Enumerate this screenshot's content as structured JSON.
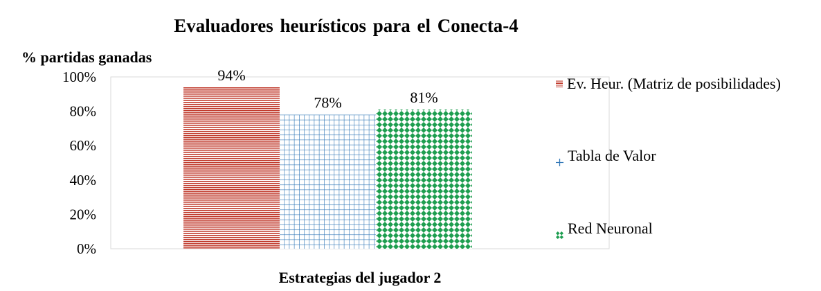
{
  "chart_data": {
    "type": "bar",
    "title": "Evaluadores  heurísticos  para  el Conecta-4",
    "ylabel": "% partidas ganadas",
    "xlabel": "Estrategias del jugador 2",
    "ylim": [
      0,
      100
    ],
    "y_ticks": [
      "100%",
      "80%",
      "60%",
      "40%",
      "20%",
      "0%"
    ],
    "series": [
      {
        "name": "Ev. Heur. (Matriz de posibilidades)",
        "value": 94,
        "label": "94%",
        "color": "#c0392b",
        "pattern": "horizontal-lines"
      },
      {
        "name": "Tabla de Valor",
        "value": 78,
        "label": "78%",
        "color": "#2e75b6",
        "pattern": "grid"
      },
      {
        "name": "Red Neuronal",
        "value": 81,
        "label": "81%",
        "color": "#1e9e50",
        "pattern": "diamonds"
      }
    ],
    "legend_position": "right"
  }
}
